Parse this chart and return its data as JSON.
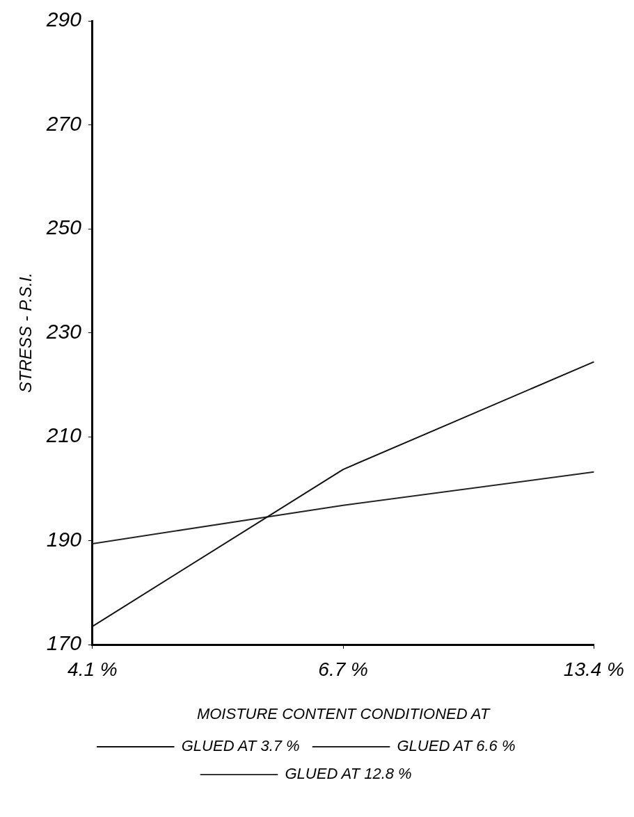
{
  "chart_data": {
    "type": "line",
    "xlabel": "MOISTURE CONTENT CONDITIONED AT",
    "ylabel": "STRESS - P.S.I.",
    "categories": [
      "4.1 %",
      "6.7 %",
      "13.4 %"
    ],
    "series": [
      {
        "name": "GLUED AT 3.7 %",
        "color": "#111111",
        "values": [
          173.5,
          203.7,
          224.4
        ]
      },
      {
        "name": "GLUED AT 6.6 %",
        "color": "#222222",
        "values": [
          189.4,
          196.8,
          203.2
        ]
      },
      {
        "name": "GLUED AT 12.8 %",
        "color": "#333333",
        "values": [
          null,
          null,
          null
        ]
      }
    ],
    "ylim": [
      170,
      290
    ],
    "yticks": [
      170,
      190,
      210,
      230,
      250,
      270,
      290
    ],
    "grid": false,
    "legend": "bottom",
    "marker": "none",
    "line_style": "solid"
  }
}
